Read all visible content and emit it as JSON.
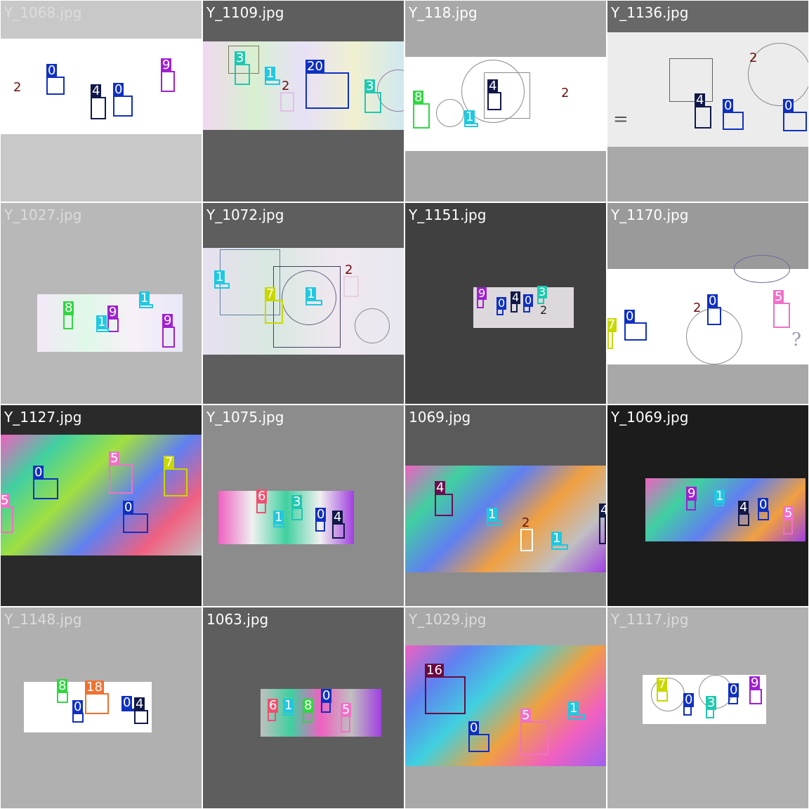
{
  "grid": {
    "tiles": [
      {
        "title": "Y_1068.jpg",
        "title_color": "#dcdcdc",
        "label_values": [
          "2",
          "0",
          "4",
          "0",
          "9"
        ]
      },
      {
        "title": "Y_1109.jpg",
        "title_color": "#ffffff",
        "label_values": [
          "3",
          "1",
          "2",
          "20",
          "3"
        ]
      },
      {
        "title": "Y_118.jpg",
        "title_color": "#ffffff",
        "label_values": [
          "8",
          "1",
          "4",
          "2"
        ]
      },
      {
        "title": "Y_1136.jpg",
        "title_color": "#ffffff",
        "label_values": [
          "2",
          "4",
          "0",
          "0"
        ]
      },
      {
        "title": "Y_1027.jpg",
        "title_color": "#dcdcdc",
        "label_values": [
          "8",
          "9",
          "1",
          "1",
          "9"
        ]
      },
      {
        "title": "Y_1072.jpg",
        "title_color": "#ffffff",
        "label_values": [
          "1",
          "7",
          "1",
          "2"
        ]
      },
      {
        "title": "Y_1151.jpg",
        "title_color": "#ffffff",
        "label_values": [
          "9",
          "0",
          "4",
          "0",
          "3",
          "2"
        ]
      },
      {
        "title": "Y_1170.jpg",
        "title_color": "#ffffff",
        "label_values": [
          "7",
          "0",
          "2",
          "0",
          "5"
        ]
      },
      {
        "title": "Y_1127.jpg",
        "title_color": "#ffffff",
        "label_values": [
          "0",
          "5",
          "7",
          "5",
          "0"
        ]
      },
      {
        "title": "Y_1075.jpg",
        "title_color": "#ffffff",
        "label_values": [
          "6",
          "3",
          "1",
          "0",
          "4"
        ]
      },
      {
        "title": "1069.jpg",
        "title_color": "#ffffff",
        "label_values": [
          "4",
          "1",
          "2",
          "1",
          "4"
        ]
      },
      {
        "title": "Y_1069.jpg",
        "title_color": "#ffffff",
        "label_values": [
          "9",
          "1",
          "4",
          "0",
          "5"
        ]
      },
      {
        "title": "Y_1148.jpg",
        "title_color": "#dcdcdc",
        "label_values": [
          "8",
          "18",
          "0",
          "0",
          "4"
        ]
      },
      {
        "title": "1063.jpg",
        "title_color": "#ffffff",
        "label_values": [
          "6",
          "1",
          "8",
          "0",
          "5"
        ]
      },
      {
        "title": "Y_1029.jpg",
        "title_color": "#dcdcdc",
        "label_values": [
          "16",
          "5",
          "1",
          "0"
        ]
      },
      {
        "title": "Y_1117.jpg",
        "title_color": "#dcdcdc",
        "label_values": [
          "7",
          "0",
          "3",
          "0",
          "9"
        ]
      }
    ]
  },
  "class_colors": {
    "0": "#1030c0",
    "1": "#20c8e0",
    "2": "#7a1010",
    "3": "#20c8b0",
    "4": "#101848",
    "5": "#f070c8",
    "6": "#f05070",
    "7": "#c8d800",
    "8": "#30d840",
    "9": "#a020d0",
    "16": "#6a0a40",
    "18": "#f07030",
    "20": "#1030c0"
  }
}
